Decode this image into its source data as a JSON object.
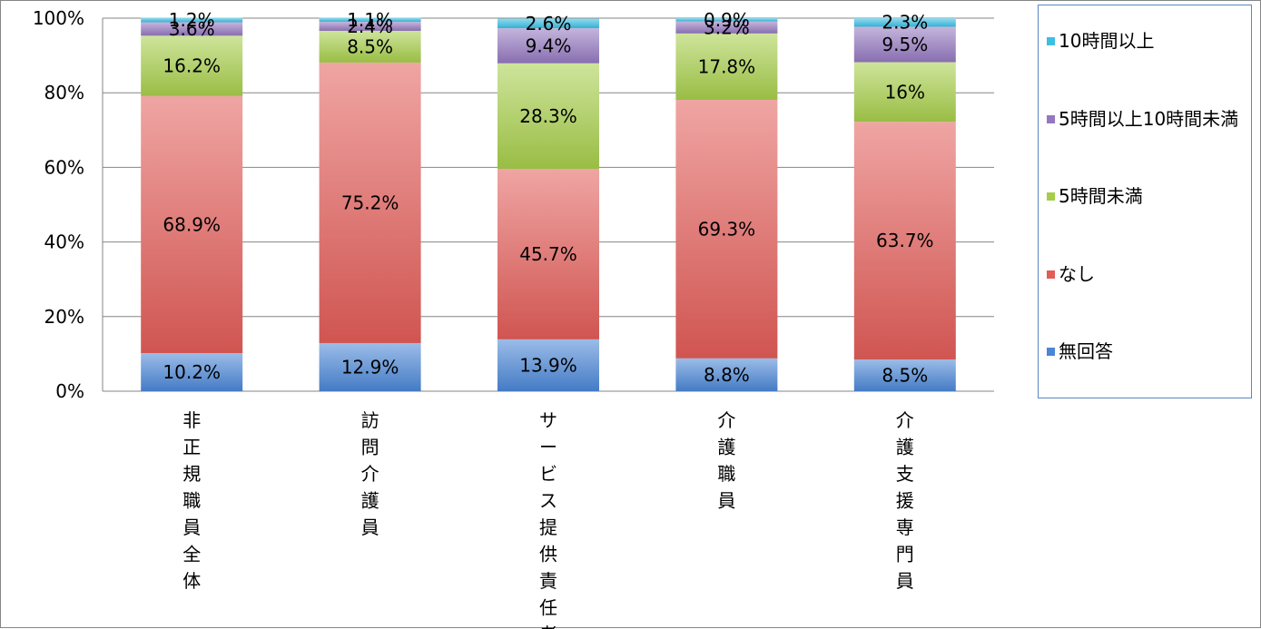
{
  "chart_data": {
    "type": "bar",
    "stacked": true,
    "percent_axis": true,
    "categories": [
      "非正規職員全体",
      "訪問介護員",
      "サービス提供責任者",
      "介護職員",
      "介護支援専門員"
    ],
    "y_ticks": [
      "0%",
      "20%",
      "40%",
      "60%",
      "80%",
      "100%"
    ],
    "ylim": [
      0,
      100
    ],
    "grid": true,
    "legend_position": "right",
    "series": [
      {
        "name": "無回答",
        "color": "#4a86d6",
        "values": [
          10.2,
          12.9,
          13.9,
          8.8,
          8.5
        ],
        "labels": [
          "10.2%",
          "12.9%",
          "13.9%",
          "8.8%",
          "8.5%"
        ]
      },
      {
        "name": "なし",
        "color": "#e25c58",
        "values": [
          68.9,
          75.2,
          45.7,
          69.3,
          63.7
        ],
        "labels": [
          "68.9%",
          "75.2%",
          "45.7%",
          "69.3%",
          "63.7%"
        ]
      },
      {
        "name": "5時間未満",
        "color": "#a6cd4a",
        "values": [
          16.2,
          8.5,
          28.3,
          17.8,
          16.0
        ],
        "labels": [
          "16.2%",
          "8.5%",
          "28.3%",
          "17.8%",
          "16%"
        ]
      },
      {
        "name": "5時間以上10時間未満",
        "color": "#9478bf",
        "values": [
          3.6,
          2.4,
          9.4,
          3.2,
          9.5
        ],
        "labels": [
          "3.6%",
          "2.4%",
          "9.4%",
          "3.2%",
          "9.5%"
        ]
      },
      {
        "name": "10時間以上",
        "color": "#3bbfe3",
        "values": [
          1.2,
          1.1,
          2.6,
          0.9,
          2.3
        ],
        "labels": [
          "1.2%",
          "1.1%",
          "2.6%",
          "0.9%",
          "2.3%"
        ]
      }
    ]
  },
  "legend": {
    "items": [
      {
        "label": "10時間以上",
        "color": "#3bbfe3"
      },
      {
        "label": "5時間以上10時間未満",
        "color": "#9478bf"
      },
      {
        "label": "5時間未満",
        "color": "#a6cd4a"
      },
      {
        "label": "なし",
        "color": "#e25c58"
      },
      {
        "label": "無回答",
        "color": "#4a86d6"
      }
    ]
  }
}
